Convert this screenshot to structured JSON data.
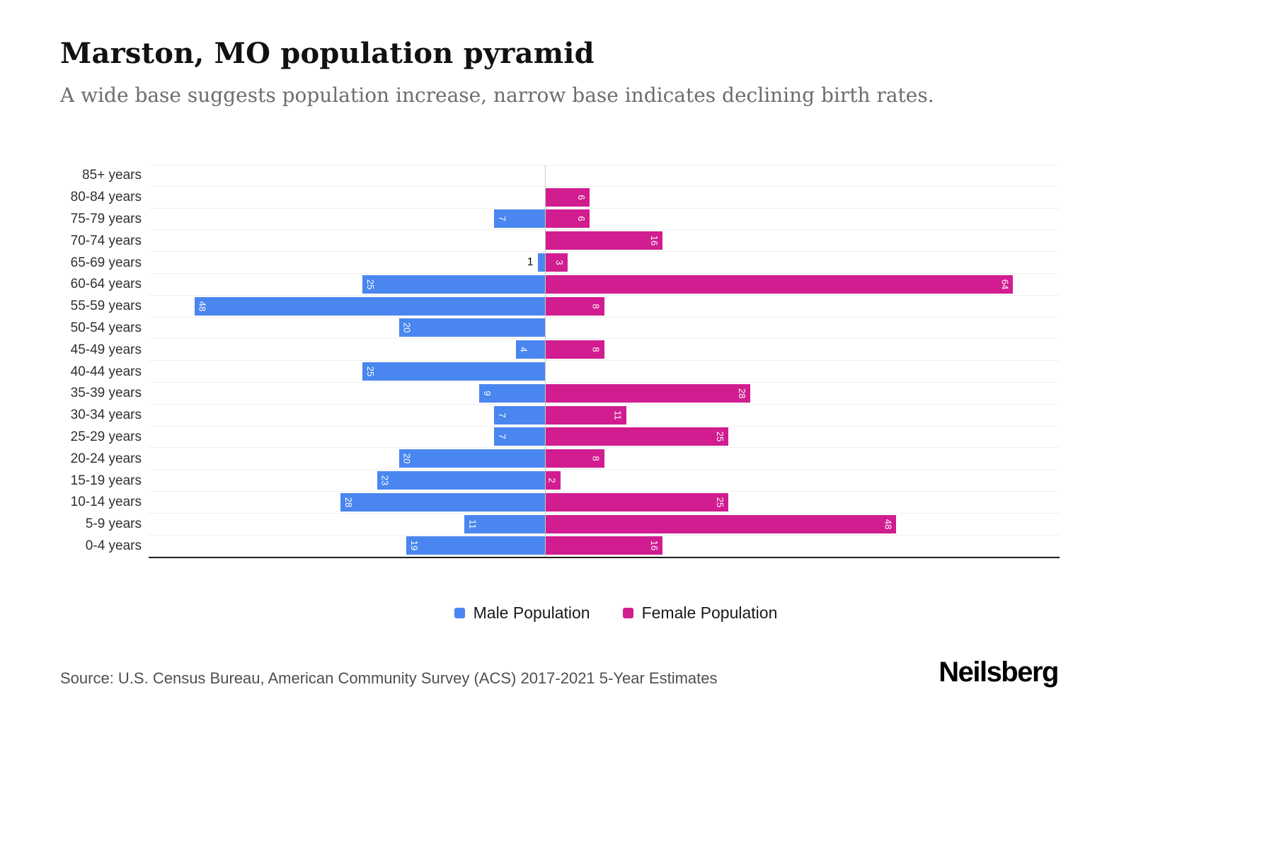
{
  "header": {
    "title": "Marston, MO population pyramid",
    "subtitle": "A wide base suggests population increase, narrow base indicates declining birth rates."
  },
  "chart_data": {
    "type": "bar",
    "variant": "population-pyramid",
    "orientation": "horizontal",
    "categories": [
      "85+ years",
      "80-84 years",
      "75-79 years",
      "70-74 years",
      "65-69 years",
      "60-64 years",
      "55-59 years",
      "50-54 years",
      "45-49 years",
      "40-44 years",
      "35-39 years",
      "30-34 years",
      "25-29 years",
      "20-24 years",
      "15-19 years",
      "10-14 years",
      "5-9 years",
      "0-4 years"
    ],
    "series": [
      {
        "name": "Male Population",
        "color": "#4a86ef",
        "values": [
          0,
          0,
          7,
          0,
          1,
          25,
          48,
          20,
          4,
          25,
          9,
          7,
          7,
          20,
          23,
          28,
          11,
          19
        ]
      },
      {
        "name": "Female Population",
        "color": "#d11d8f",
        "values": [
          0,
          6,
          6,
          16,
          3,
          64,
          8,
          0,
          8,
          0,
          28,
          11,
          25,
          8,
          2,
          25,
          48,
          16
        ]
      }
    ],
    "value_labels": true,
    "grid": true,
    "legend_position": "bottom"
  },
  "footer": {
    "source": "Source: U.S. Census Bureau, American Community Survey (ACS) 2017-2021 5-Year Estimates",
    "brand": "Neilsberg"
  }
}
